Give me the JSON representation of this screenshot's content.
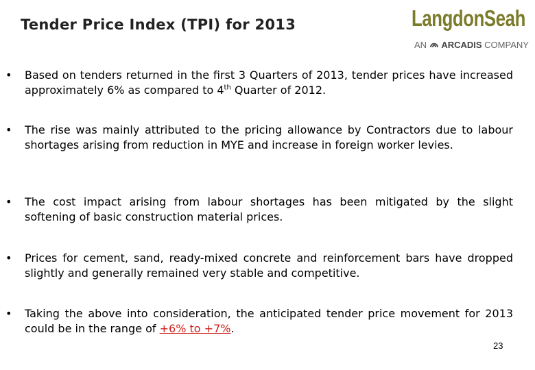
{
  "header": {
    "title": "Tender Price Index (TPI) for 2013",
    "logo": {
      "name_part1": "Langdon",
      "name_part2": "Seah",
      "tagline_prefix": "AN",
      "tagline_brand": "ARCADIS",
      "tagline_suffix": "COMPANY"
    }
  },
  "bullets": [
    {
      "text": "Based on tenders returned in the first 3 Quarters of 2013, tender prices have increased approximately 6% as compared to 4",
      "superscript": "th",
      "text_after": " Quarter of 2012."
    },
    {
      "text": "The rise was mainly attributed to the pricing allowance by Contractors due to labour shortages arising from reduction in MYE and increase in foreign worker levies."
    },
    {
      "text": "The cost impact arising from labour shortages has been mitigated by the slight softening of basic construction material prices."
    },
    {
      "text": "Prices for cement, sand, ready-mixed concrete and reinforcement bars have dropped slightly and generally remained very stable and competitive."
    },
    {
      "text": "Taking the above into consideration, the anticipated tender price movement for 2013 could be in the range of ",
      "highlight": "+6% to +7%",
      "text_after": "."
    }
  ],
  "page_number": "23"
}
